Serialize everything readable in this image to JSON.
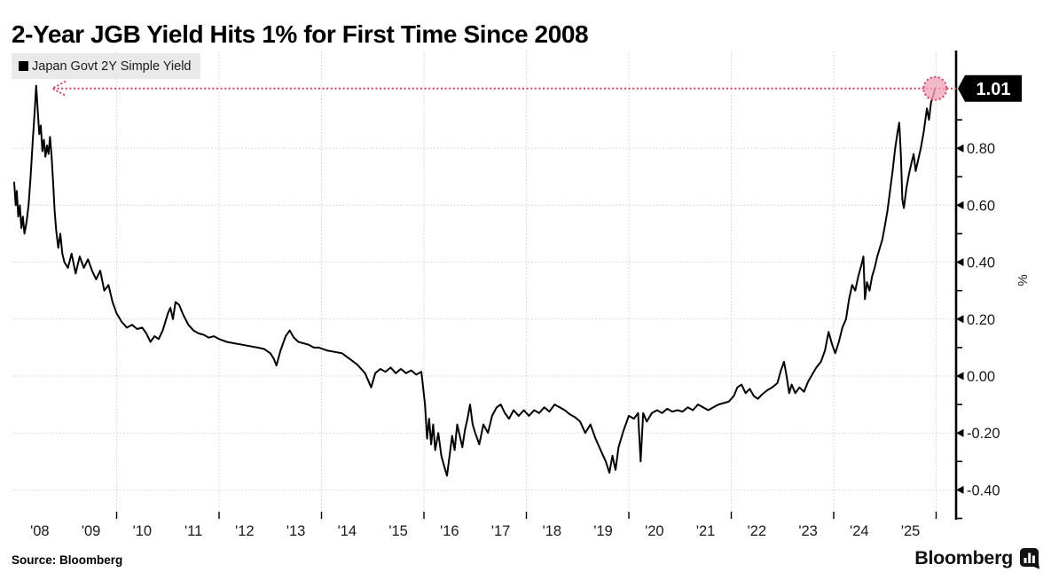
{
  "title": "2-Year JGB Yield Hits 1% for First Time Since 2008",
  "legend": {
    "label": "Japan Govt 2Y Simple Yield",
    "swatch_color": "#000000"
  },
  "source_note": "Source: Bloomberg",
  "brand": {
    "name": "Bloomberg"
  },
  "colors": {
    "series_line": "#000000",
    "accent_red": "#e23b55",
    "circle_fill": "#f3a9bc",
    "grid": "#cfcfcf",
    "axis": "#000000",
    "badge_bg": "#000000",
    "badge_text": "#ffffff",
    "legend_bg": "#e9e9e9"
  },
  "chart_data": {
    "type": "line",
    "title": "2-Year JGB Yield Hits 1% for First Time Since 2008",
    "xlabel": "",
    "ylabel": "%",
    "legend_position": "top-left",
    "grid": "dotted",
    "xlim": [
      2008,
      2026.4
    ],
    "ylim": [
      -0.52,
      1.15
    ],
    "x_tick_labels": [
      "'08",
      "'09",
      "'10",
      "'11",
      "'12",
      "'13",
      "'14",
      "'15",
      "'16",
      "'17",
      "'18",
      "'19",
      "'20",
      "'21",
      "'22",
      "'23",
      "'24",
      "'25"
    ],
    "x_tick_years": [
      2008,
      2009,
      2010,
      2011,
      2012,
      2013,
      2014,
      2015,
      2016,
      2017,
      2018,
      2019,
      2020,
      2021,
      2022,
      2023,
      2024,
      2025
    ],
    "x_gridline_years": [
      2010,
      2012,
      2014,
      2016,
      2018,
      2020,
      2022,
      2024,
      2026
    ],
    "y_ticks": [
      {
        "value": 0.8,
        "label": "0.80"
      },
      {
        "value": 0.6,
        "label": "0.60"
      },
      {
        "value": 0.4,
        "label": "0.40"
      },
      {
        "value": 0.2,
        "label": "0.20"
      },
      {
        "value": 0.0,
        "label": "0.00"
      },
      {
        "value": -0.2,
        "label": "-0.20"
      },
      {
        "value": -0.4,
        "label": "-0.40"
      }
    ],
    "y_minor_ticks": [
      0.9,
      0.7,
      0.5,
      0.3,
      0.1,
      -0.1,
      -0.3,
      -0.5
    ],
    "annotation": {
      "label": "1.01",
      "value": 1.01,
      "t": 2025.98,
      "callout_line_value": 1.01,
      "arrow_direction": "left-to-2008-peak"
    },
    "series": [
      {
        "name": "Japan Govt 2Y Simple Yield",
        "color": "#000000",
        "points": [
          [
            2008.0,
            0.68
          ],
          [
            2008.03,
            0.6
          ],
          [
            2008.05,
            0.65
          ],
          [
            2008.08,
            0.56
          ],
          [
            2008.11,
            0.6
          ],
          [
            2008.14,
            0.52
          ],
          [
            2008.17,
            0.56
          ],
          [
            2008.2,
            0.5
          ],
          [
            2008.24,
            0.54
          ],
          [
            2008.28,
            0.6
          ],
          [
            2008.32,
            0.7
          ],
          [
            2008.36,
            0.82
          ],
          [
            2008.4,
            0.93
          ],
          [
            2008.43,
            1.02
          ],
          [
            2008.46,
            0.93
          ],
          [
            2008.49,
            0.85
          ],
          [
            2008.52,
            0.88
          ],
          [
            2008.55,
            0.79
          ],
          [
            2008.58,
            0.83
          ],
          [
            2008.61,
            0.77
          ],
          [
            2008.64,
            0.81
          ],
          [
            2008.67,
            0.78
          ],
          [
            2008.7,
            0.84
          ],
          [
            2008.73,
            0.77
          ],
          [
            2008.76,
            0.68
          ],
          [
            2008.79,
            0.58
          ],
          [
            2008.82,
            0.51
          ],
          [
            2008.86,
            0.45
          ],
          [
            2008.9,
            0.5
          ],
          [
            2008.94,
            0.43
          ],
          [
            2008.98,
            0.4
          ],
          [
            2009.05,
            0.38
          ],
          [
            2009.12,
            0.43
          ],
          [
            2009.2,
            0.36
          ],
          [
            2009.28,
            0.42
          ],
          [
            2009.36,
            0.38
          ],
          [
            2009.44,
            0.41
          ],
          [
            2009.52,
            0.37
          ],
          [
            2009.6,
            0.34
          ],
          [
            2009.68,
            0.37
          ],
          [
            2009.76,
            0.3
          ],
          [
            2009.84,
            0.32
          ],
          [
            2009.92,
            0.26
          ],
          [
            2010.0,
            0.22
          ],
          [
            2010.1,
            0.19
          ],
          [
            2010.2,
            0.17
          ],
          [
            2010.3,
            0.18
          ],
          [
            2010.4,
            0.165
          ],
          [
            2010.5,
            0.17
          ],
          [
            2010.58,
            0.15
          ],
          [
            2010.66,
            0.12
          ],
          [
            2010.74,
            0.14
          ],
          [
            2010.82,
            0.13
          ],
          [
            2010.9,
            0.16
          ],
          [
            2011.0,
            0.22
          ],
          [
            2011.05,
            0.24
          ],
          [
            2011.1,
            0.2
          ],
          [
            2011.15,
            0.26
          ],
          [
            2011.22,
            0.25
          ],
          [
            2011.3,
            0.215
          ],
          [
            2011.4,
            0.18
          ],
          [
            2011.5,
            0.16
          ],
          [
            2011.6,
            0.15
          ],
          [
            2011.7,
            0.145
          ],
          [
            2011.8,
            0.135
          ],
          [
            2011.9,
            0.14
          ],
          [
            2012.0,
            0.13
          ],
          [
            2012.15,
            0.12
          ],
          [
            2012.3,
            0.115
          ],
          [
            2012.45,
            0.11
          ],
          [
            2012.6,
            0.105
          ],
          [
            2012.75,
            0.1
          ],
          [
            2012.88,
            0.095
          ],
          [
            2013.0,
            0.08
          ],
          [
            2013.07,
            0.06
          ],
          [
            2013.12,
            0.037
          ],
          [
            2013.2,
            0.09
          ],
          [
            2013.3,
            0.14
          ],
          [
            2013.38,
            0.16
          ],
          [
            2013.46,
            0.135
          ],
          [
            2013.55,
            0.12
          ],
          [
            2013.65,
            0.115
          ],
          [
            2013.75,
            0.11
          ],
          [
            2013.85,
            0.1
          ],
          [
            2013.95,
            0.1
          ],
          [
            2014.1,
            0.09
          ],
          [
            2014.25,
            0.085
          ],
          [
            2014.4,
            0.08
          ],
          [
            2014.55,
            0.06
          ],
          [
            2014.7,
            0.04
          ],
          [
            2014.85,
            0.01
          ],
          [
            2014.97,
            -0.04
          ],
          [
            2015.05,
            0.01
          ],
          [
            2015.15,
            0.025
          ],
          [
            2015.25,
            0.015
          ],
          [
            2015.35,
            0.03
          ],
          [
            2015.45,
            0.01
          ],
          [
            2015.55,
            0.025
          ],
          [
            2015.65,
            0.01
          ],
          [
            2015.75,
            0.02
          ],
          [
            2015.85,
            0.005
          ],
          [
            2015.95,
            0.015
          ],
          [
            2016.02,
            -0.1
          ],
          [
            2016.06,
            -0.22
          ],
          [
            2016.1,
            -0.15
          ],
          [
            2016.14,
            -0.24
          ],
          [
            2016.18,
            -0.17
          ],
          [
            2016.22,
            -0.26
          ],
          [
            2016.28,
            -0.2
          ],
          [
            2016.34,
            -0.28
          ],
          [
            2016.4,
            -0.32
          ],
          [
            2016.45,
            -0.35
          ],
          [
            2016.5,
            -0.28
          ],
          [
            2016.55,
            -0.21
          ],
          [
            2016.6,
            -0.26
          ],
          [
            2016.65,
            -0.17
          ],
          [
            2016.7,
            -0.21
          ],
          [
            2016.75,
            -0.25
          ],
          [
            2016.8,
            -0.19
          ],
          [
            2016.85,
            -0.15
          ],
          [
            2016.9,
            -0.1
          ],
          [
            2016.95,
            -0.17
          ],
          [
            2017.0,
            -0.2
          ],
          [
            2017.08,
            -0.24
          ],
          [
            2017.16,
            -0.17
          ],
          [
            2017.25,
            -0.2
          ],
          [
            2017.33,
            -0.14
          ],
          [
            2017.42,
            -0.11
          ],
          [
            2017.5,
            -0.1
          ],
          [
            2017.58,
            -0.13
          ],
          [
            2017.66,
            -0.15
          ],
          [
            2017.75,
            -0.12
          ],
          [
            2017.85,
            -0.14
          ],
          [
            2017.95,
            -0.12
          ],
          [
            2018.05,
            -0.14
          ],
          [
            2018.15,
            -0.12
          ],
          [
            2018.25,
            -0.13
          ],
          [
            2018.35,
            -0.11
          ],
          [
            2018.45,
            -0.125
          ],
          [
            2018.55,
            -0.1
          ],
          [
            2018.65,
            -0.11
          ],
          [
            2018.75,
            -0.12
          ],
          [
            2018.85,
            -0.135
          ],
          [
            2018.95,
            -0.145
          ],
          [
            2019.05,
            -0.16
          ],
          [
            2019.15,
            -0.2
          ],
          [
            2019.25,
            -0.17
          ],
          [
            2019.35,
            -0.22
          ],
          [
            2019.45,
            -0.26
          ],
          [
            2019.55,
            -0.3
          ],
          [
            2019.62,
            -0.34
          ],
          [
            2019.68,
            -0.28
          ],
          [
            2019.74,
            -0.33
          ],
          [
            2019.8,
            -0.25
          ],
          [
            2019.9,
            -0.19
          ],
          [
            2020.0,
            -0.14
          ],
          [
            2020.1,
            -0.15
          ],
          [
            2020.18,
            -0.13
          ],
          [
            2020.23,
            -0.3
          ],
          [
            2020.28,
            -0.13
          ],
          [
            2020.35,
            -0.16
          ],
          [
            2020.45,
            -0.13
          ],
          [
            2020.55,
            -0.12
          ],
          [
            2020.65,
            -0.13
          ],
          [
            2020.75,
            -0.115
          ],
          [
            2020.85,
            -0.125
          ],
          [
            2020.95,
            -0.12
          ],
          [
            2021.05,
            -0.125
          ],
          [
            2021.15,
            -0.11
          ],
          [
            2021.25,
            -0.12
          ],
          [
            2021.35,
            -0.1
          ],
          [
            2021.45,
            -0.11
          ],
          [
            2021.55,
            -0.12
          ],
          [
            2021.65,
            -0.11
          ],
          [
            2021.75,
            -0.1
          ],
          [
            2021.85,
            -0.095
          ],
          [
            2021.95,
            -0.09
          ],
          [
            2022.05,
            -0.07
          ],
          [
            2022.12,
            -0.04
          ],
          [
            2022.2,
            -0.03
          ],
          [
            2022.28,
            -0.06
          ],
          [
            2022.36,
            -0.045
          ],
          [
            2022.44,
            -0.07
          ],
          [
            2022.52,
            -0.08
          ],
          [
            2022.6,
            -0.065
          ],
          [
            2022.7,
            -0.05
          ],
          [
            2022.8,
            -0.04
          ],
          [
            2022.9,
            -0.025
          ],
          [
            2022.97,
            0.02
          ],
          [
            2023.03,
            0.05
          ],
          [
            2023.08,
            0.0
          ],
          [
            2023.13,
            -0.06
          ],
          [
            2023.18,
            -0.03
          ],
          [
            2023.25,
            -0.06
          ],
          [
            2023.33,
            -0.04
          ],
          [
            2023.42,
            -0.055
          ],
          [
            2023.5,
            -0.02
          ],
          [
            2023.58,
            0.005
          ],
          [
            2023.66,
            0.03
          ],
          [
            2023.75,
            0.05
          ],
          [
            2023.83,
            0.09
          ],
          [
            2023.9,
            0.155
          ],
          [
            2023.97,
            0.11
          ],
          [
            2024.03,
            0.08
          ],
          [
            2024.1,
            0.12
          ],
          [
            2024.17,
            0.17
          ],
          [
            2024.24,
            0.2
          ],
          [
            2024.3,
            0.27
          ],
          [
            2024.36,
            0.32
          ],
          [
            2024.42,
            0.3
          ],
          [
            2024.48,
            0.35
          ],
          [
            2024.54,
            0.39
          ],
          [
            2024.58,
            0.42
          ],
          [
            2024.61,
            0.27
          ],
          [
            2024.65,
            0.33
          ],
          [
            2024.7,
            0.3
          ],
          [
            2024.75,
            0.35
          ],
          [
            2024.8,
            0.38
          ],
          [
            2024.85,
            0.42
          ],
          [
            2024.9,
            0.45
          ],
          [
            2024.95,
            0.48
          ],
          [
            2025.0,
            0.53
          ],
          [
            2025.05,
            0.58
          ],
          [
            2025.1,
            0.65
          ],
          [
            2025.15,
            0.72
          ],
          [
            2025.2,
            0.8
          ],
          [
            2025.25,
            0.86
          ],
          [
            2025.28,
            0.89
          ],
          [
            2025.31,
            0.78
          ],
          [
            2025.34,
            0.62
          ],
          [
            2025.37,
            0.59
          ],
          [
            2025.42,
            0.66
          ],
          [
            2025.47,
            0.71
          ],
          [
            2025.52,
            0.75
          ],
          [
            2025.56,
            0.78
          ],
          [
            2025.6,
            0.72
          ],
          [
            2025.65,
            0.76
          ],
          [
            2025.7,
            0.8
          ],
          [
            2025.76,
            0.86
          ],
          [
            2025.82,
            0.94
          ],
          [
            2025.86,
            0.9
          ],
          [
            2025.9,
            0.96
          ],
          [
            2025.95,
            0.99
          ],
          [
            2025.98,
            1.01
          ]
        ]
      }
    ]
  }
}
